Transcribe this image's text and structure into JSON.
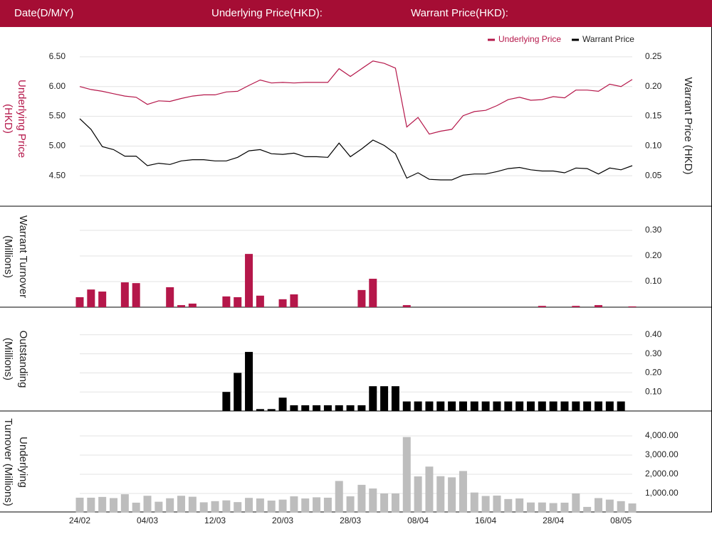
{
  "header": {
    "labels": [
      "Date(D/M/Y)",
      "Underlying Price(HKD):",
      "Warrant Price(HKD):"
    ]
  },
  "chart_data": [
    {
      "type": "line",
      "ylabel": [
        "Underlying Price",
        "(HKD)"
      ],
      "y2label": "Warrant  Price (HKD)",
      "legend": "top-right",
      "ylim": [
        4.0,
        6.75
      ],
      "yticks": [
        {
          "value": 4.5,
          "label": "4.50"
        },
        {
          "value": 5.0,
          "label": "5.00"
        },
        {
          "value": 5.5,
          "label": "5.50"
        },
        {
          "value": 6.0,
          "label": "6.00"
        },
        {
          "value": 6.5,
          "label": "6.50"
        }
      ],
      "y2lim": [
        0,
        0.275
      ],
      "y2ticks": [
        0.05,
        {
          "value": 0.1,
          "label": "0.10"
        },
        0.15,
        {
          "value": 0.2,
          "label": "0.20"
        },
        0.25
      ],
      "grid": true,
      "series": [
        {
          "name": "Underlying Price",
          "color": "#b5174a",
          "values": [
            6.0,
            5.95,
            5.92,
            5.88,
            5.84,
            5.82,
            5.7,
            5.76,
            5.75,
            5.8,
            5.84,
            5.86,
            5.86,
            5.91,
            5.92,
            6.02,
            6.11,
            6.06,
            6.07,
            6.06,
            6.07,
            6.07,
            6.07,
            6.3,
            6.17,
            6.3,
            6.43,
            6.39,
            6.31,
            5.32,
            5.48,
            5.2,
            5.25,
            5.28,
            5.51,
            5.58,
            5.6,
            5.68,
            5.78,
            5.82,
            5.77,
            5.78,
            5.83,
            5.81,
            5.94,
            5.94,
            5.92,
            6.04,
            6.0,
            6.12
          ]
        },
        {
          "name": "Warrant Price",
          "color": "#000000",
          "axis": "y2",
          "values": [
            0.146,
            0.128,
            0.099,
            0.094,
            0.083,
            0.083,
            0.067,
            0.071,
            0.069,
            0.075,
            0.077,
            0.077,
            0.075,
            0.075,
            0.081,
            0.092,
            0.094,
            0.087,
            0.086,
            0.088,
            0.082,
            0.082,
            0.081,
            0.105,
            0.082,
            0.095,
            0.11,
            0.101,
            0.087,
            0.046,
            0.055,
            0.044,
            0.043,
            0.043,
            0.051,
            0.053,
            0.053,
            0.057,
            0.062,
            0.064,
            0.06,
            0.058,
            0.058,
            0.055,
            0.063,
            0.062,
            0.053,
            0.063,
            0.06,
            0.067
          ]
        }
      ]
    },
    {
      "type": "bar",
      "ylabel": [
        "Warrant  Turnover",
        "(Millions)"
      ],
      "ylim": [
        0,
        0.35
      ],
      "yticks": [
        {
          "value": 0.1,
          "label": "0.10"
        },
        {
          "value": 0.2,
          "label": "0.20"
        },
        {
          "value": 0.3,
          "label": "0.30"
        }
      ],
      "grid": true,
      "color": "#b5174a",
      "values": [
        0.039,
        0.069,
        0.061,
        0,
        0.097,
        0.094,
        0,
        0,
        0.078,
        0.008,
        0.014,
        0,
        0,
        0.042,
        0.039,
        0.208,
        0.045,
        0,
        0.031,
        0.05,
        0,
        0,
        0,
        0,
        0,
        0.067,
        0.111,
        0,
        0,
        0.008,
        0,
        0,
        0,
        0,
        0,
        0,
        0,
        0,
        0,
        0,
        0,
        0.005,
        0,
        0,
        0.005,
        0,
        0.008,
        0,
        0,
        0.003
      ]
    },
    {
      "type": "bar",
      "ylabel": [
        "Outstanding",
        "(Millions)"
      ],
      "ylim": [
        0,
        0.5
      ],
      "yticks": [
        {
          "value": 0.1,
          "label": "0.10"
        },
        {
          "value": 0.2,
          "label": "0.20"
        },
        {
          "value": 0.3,
          "label": "0.30"
        },
        {
          "value": 0.4,
          "label": "0.40"
        }
      ],
      "grid": true,
      "color": "#000000",
      "values": [
        0,
        0,
        0,
        0,
        0,
        0,
        0,
        0,
        0,
        0,
        0,
        0,
        0,
        0.1,
        0.2,
        0.31,
        0.01,
        0.01,
        0.07,
        0.03,
        0.03,
        0.03,
        0.03,
        0.03,
        0.03,
        0.03,
        0.13,
        0.13,
        0.13,
        0.05,
        0.05,
        0.05,
        0.05,
        0.05,
        0.05,
        0.05,
        0.05,
        0.05,
        0.05,
        0.05,
        0.05,
        0.05,
        0.05,
        0.05,
        0.05,
        0.05,
        0.05,
        0.05,
        0.05,
        0
      ]
    },
    {
      "type": "bar",
      "ylabel": [
        "Underlying",
        "Turnover (Millions)"
      ],
      "ylim": [
        0,
        5000
      ],
      "yticks": [
        {
          "value": 1000,
          "label": "1,000.00"
        },
        {
          "value": 2000,
          "label": "2,000.00"
        },
        {
          "value": 3000,
          "label": "3,000.00"
        },
        {
          "value": 4000,
          "label": "4,000.00"
        }
      ],
      "grid": true,
      "color": "#bdbdbd",
      "categories": [
        "24/02",
        null,
        null,
        null,
        null,
        null,
        "04/03",
        null,
        null,
        null,
        null,
        null,
        "12/03",
        null,
        null,
        null,
        null,
        null,
        "20/03",
        null,
        null,
        null,
        null,
        null,
        "28/03",
        null,
        null,
        null,
        null,
        null,
        "08/04",
        null,
        null,
        null,
        null,
        null,
        "16/04",
        null,
        null,
        null,
        null,
        null,
        "28/04",
        null,
        null,
        null,
        null,
        null,
        "08/05",
        null
      ],
      "values": [
        780,
        780,
        820,
        760,
        960,
        520,
        880,
        570,
        750,
        880,
        830,
        540,
        600,
        640,
        550,
        770,
        740,
        630,
        680,
        850,
        740,
        800,
        780,
        1650,
        850,
        1450,
        1260,
        1000,
        1000,
        3940,
        1890,
        2400,
        1900,
        1840,
        2170,
        1050,
        870,
        890,
        710,
        740,
        530,
        530,
        500,
        520,
        1000,
        300,
        760,
        680,
        600,
        480
      ]
    }
  ]
}
